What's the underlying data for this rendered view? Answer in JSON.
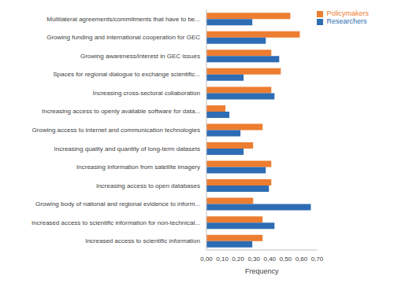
{
  "chart_data": {
    "type": "bar",
    "orientation": "horizontal",
    "categories": [
      "Multilateral agreements/commitments that have to be...",
      "Growing funding and international cooperation for GEC",
      "Growing awareness/interest in GEC issues",
      "Spaces for regional dialogue to exchange scientific...",
      "Increasing cross-sectoral collaboration",
      "Increasing access to openly available software for data...",
      "Growing access to internet and communication technologies",
      "Increasing quality and quantity of long-term datasets",
      "Increasing information from satellite imagery",
      "Increasing access to open databases",
      "Growing body of national and regional evidence to inform...",
      "Increased access to scientific information for non-technical...",
      "Increased access to scientific information"
    ],
    "series": [
      {
        "name": "Policymakers",
        "color": "#ed7d31",
        "values": [
          0.53,
          0.59,
          0.41,
          0.47,
          0.41,
          0.12,
          0.355,
          0.295,
          0.41,
          0.41,
          0.295,
          0.355,
          0.355
        ]
      },
      {
        "name": "Researchers",
        "color": "#2e6db4",
        "values": [
          0.29,
          0.375,
          0.46,
          0.235,
          0.43,
          0.145,
          0.215,
          0.235,
          0.375,
          0.395,
          0.66,
          0.43,
          0.29
        ]
      }
    ],
    "xlabel": "Frequency",
    "xlim": [
      0,
      0.7
    ],
    "xticks": [
      {
        "value": 0,
        "label": "0,00"
      },
      {
        "value": 0.1,
        "label": "0,10"
      },
      {
        "value": 0.2,
        "label": "0,20"
      },
      {
        "value": 0.3,
        "label": "0,30"
      },
      {
        "value": 0.4,
        "label": "0,40"
      },
      {
        "value": 0.5,
        "label": "0,50"
      },
      {
        "value": 0.6,
        "label": "0,60"
      },
      {
        "value": 0.7,
        "label": "0,70"
      }
    ],
    "legend": "top right",
    "grid": false
  }
}
